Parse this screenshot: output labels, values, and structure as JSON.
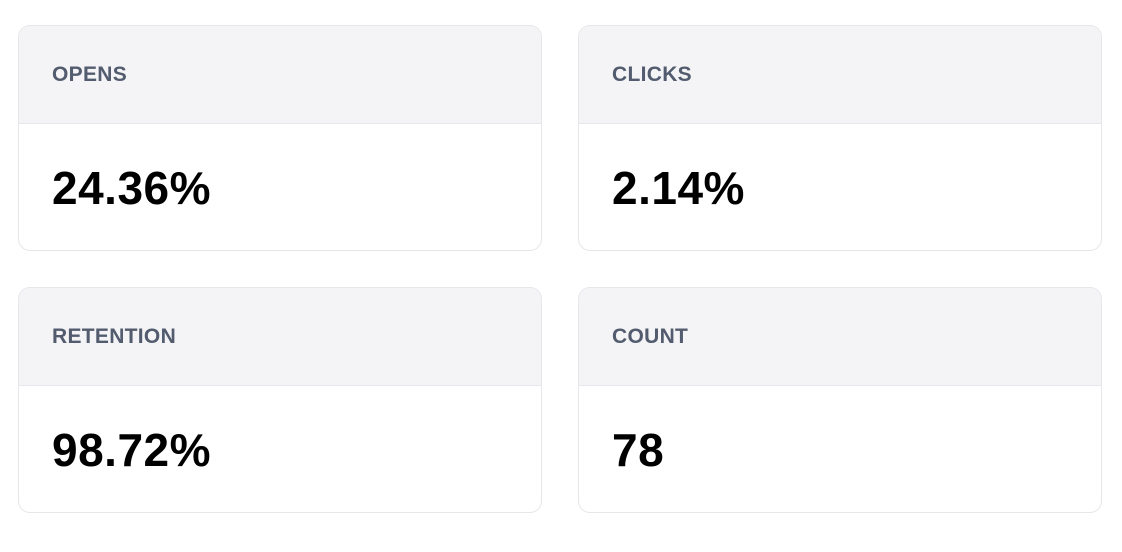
{
  "stats": [
    {
      "label": "OPENS",
      "value": "24.36%"
    },
    {
      "label": "CLICKS",
      "value": "2.14%"
    },
    {
      "label": "RETENTION",
      "value": "98.72%"
    },
    {
      "label": "COUNT",
      "value": "78"
    }
  ]
}
